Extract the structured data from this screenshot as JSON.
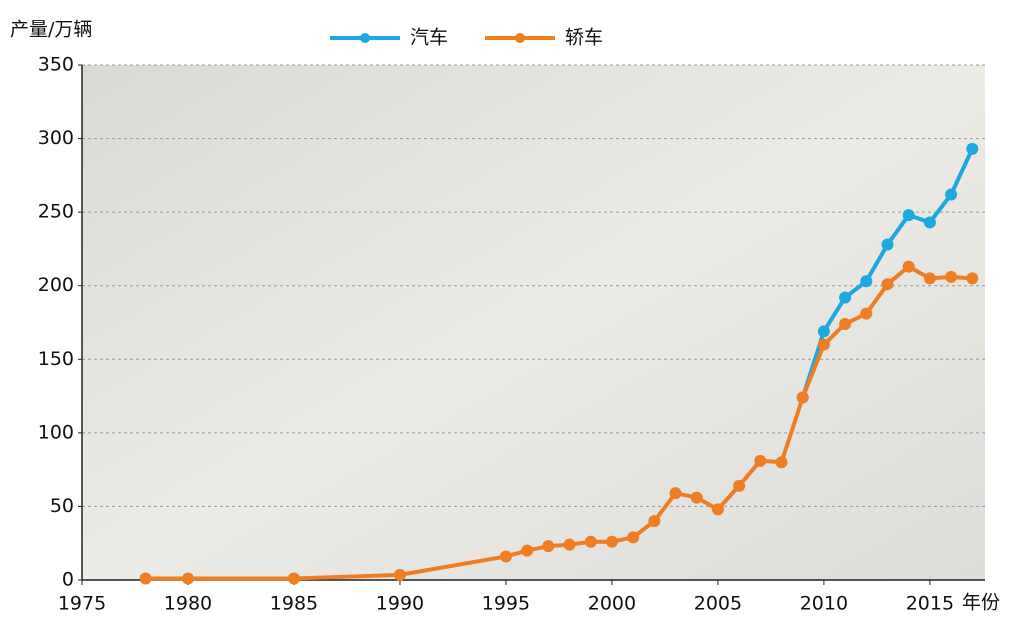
{
  "chart_data": {
    "type": "line",
    "y_label": "产量/万辆",
    "x_label": "年份",
    "x": [
      1978,
      1980,
      1985,
      1990,
      1995,
      1996,
      1997,
      1998,
      1999,
      2000,
      2001,
      2002,
      2003,
      2004,
      2005,
      2006,
      2007,
      2008,
      2009,
      2010,
      2011,
      2012,
      2013,
      2014,
      2015,
      2016,
      2017
    ],
    "series": [
      {
        "name": "汽车",
        "color": "#1ca8e0",
        "values": [
          null,
          null,
          null,
          null,
          null,
          null,
          null,
          null,
          null,
          null,
          null,
          null,
          null,
          null,
          null,
          null,
          null,
          null,
          124,
          169,
          192,
          203,
          228,
          248,
          243,
          262,
          293
        ]
      },
      {
        "name": "轿车",
        "color": "#ef7d22",
        "values": [
          1,
          1,
          1,
          3.5,
          16,
          20,
          23,
          24,
          26,
          26,
          29,
          40,
          59,
          56,
          48,
          64,
          81,
          80,
          124,
          160,
          174,
          181,
          201,
          213,
          205,
          206,
          205
        ]
      }
    ],
    "xlim": [
      1975,
      2017.6
    ],
    "ylim": [
      0,
      350
    ],
    "xticks": [
      1975,
      1980,
      1985,
      1990,
      1995,
      2000,
      2005,
      2010,
      2015
    ],
    "yticks": [
      0,
      50,
      100,
      150,
      200,
      250,
      300,
      350
    ],
    "grid": true,
    "legend": "top"
  }
}
